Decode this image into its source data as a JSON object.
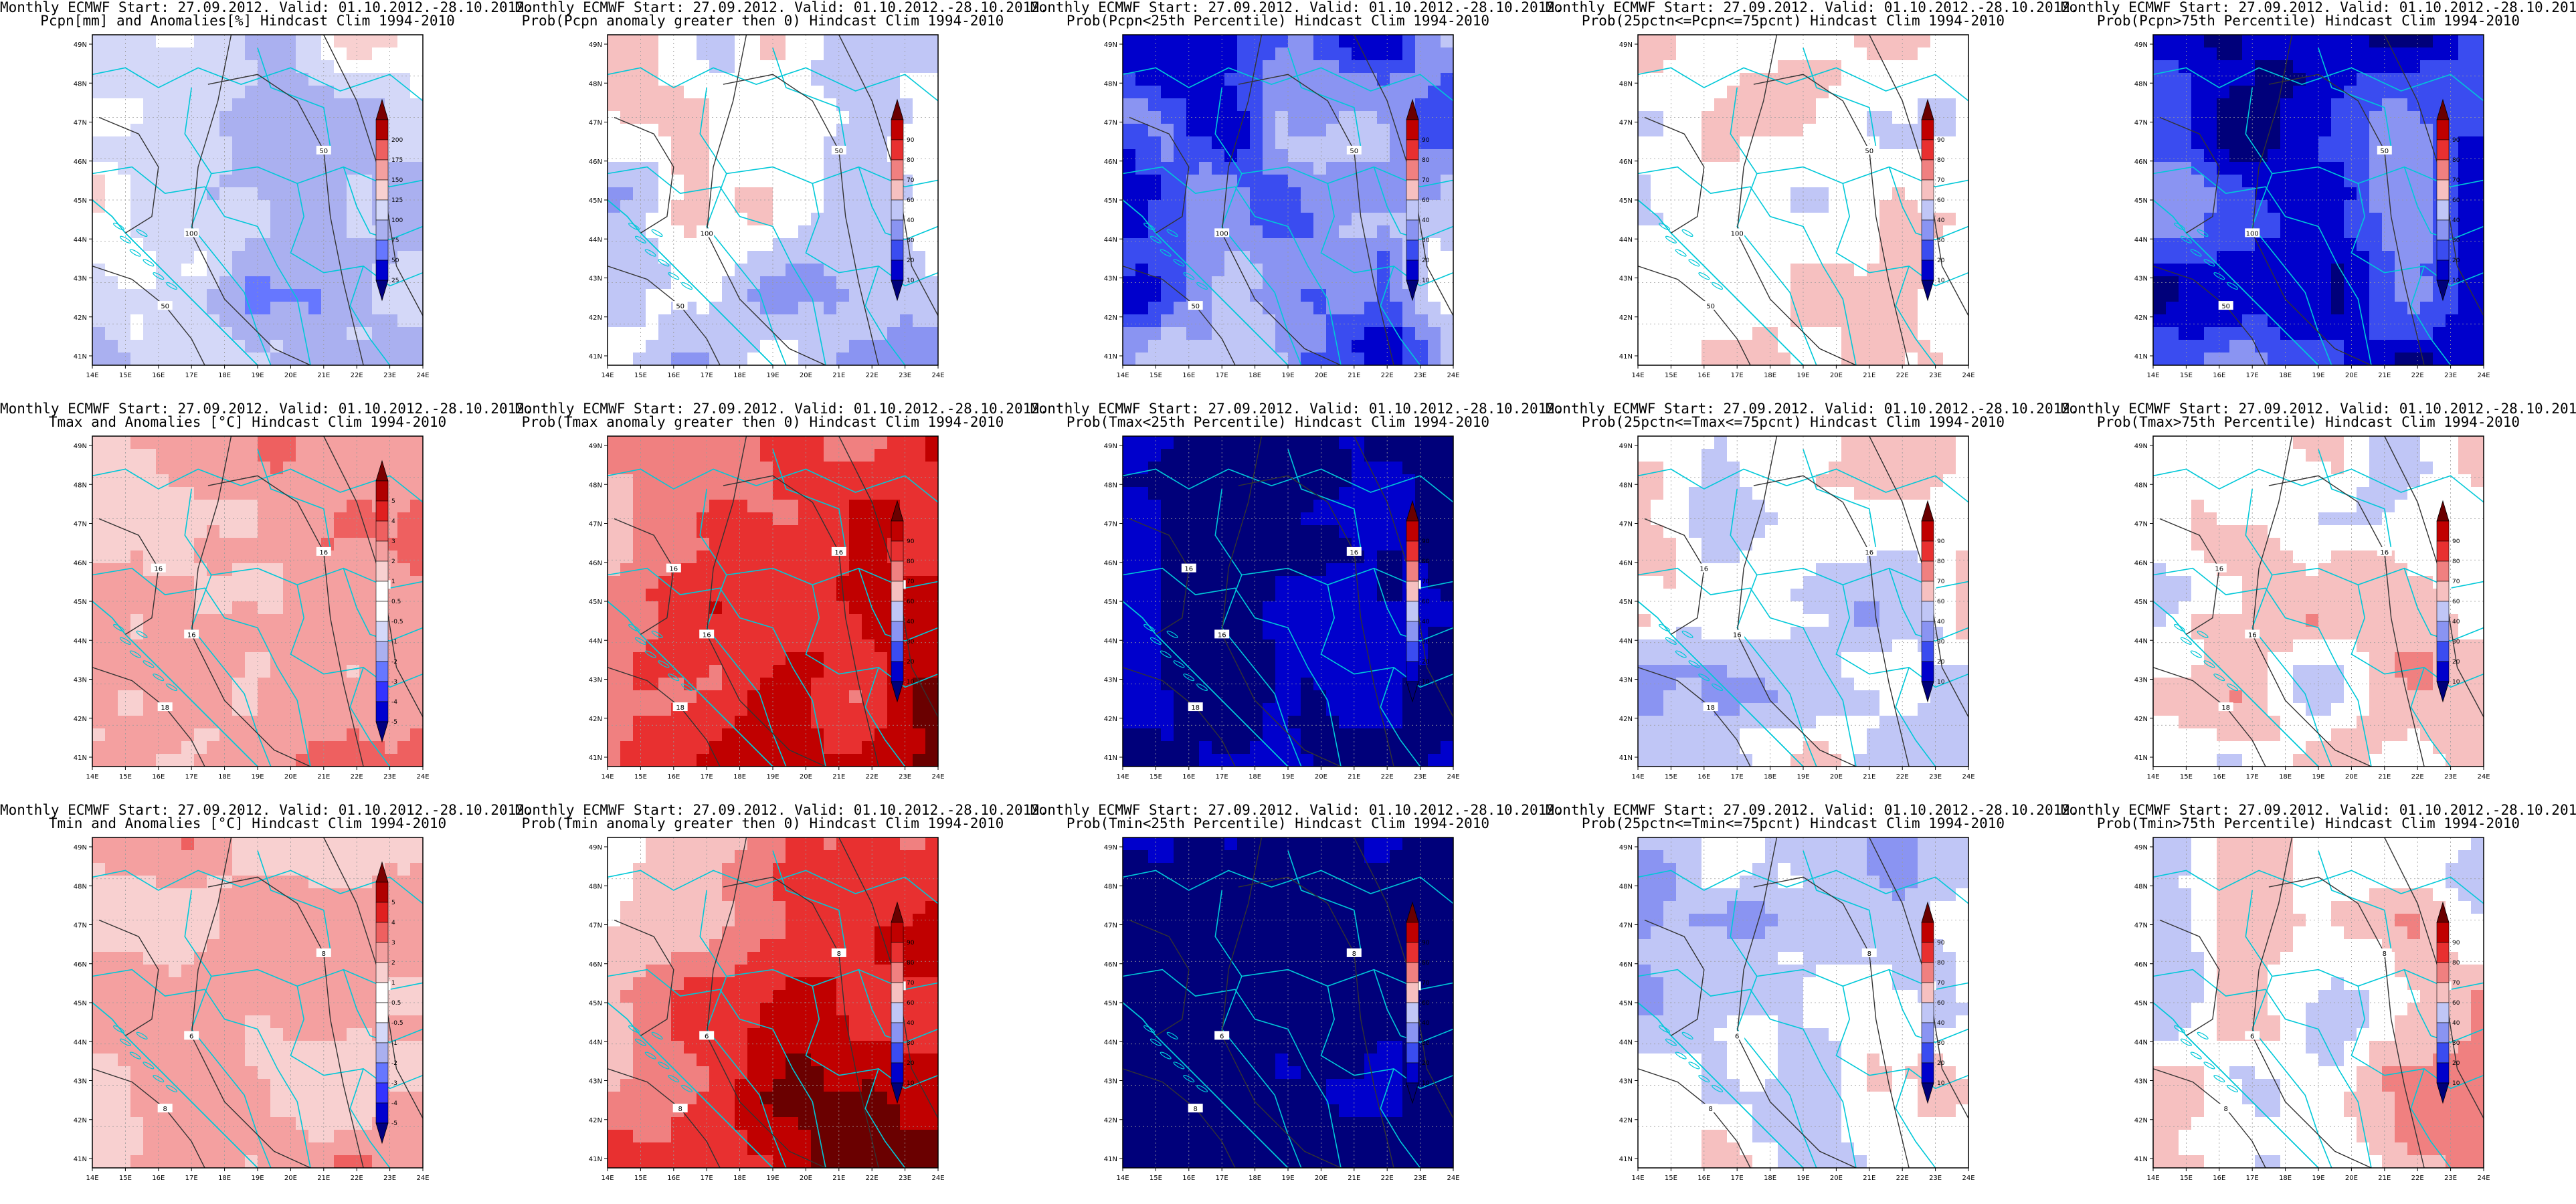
{
  "header": "Monthly ECMWF Start: 27.09.2012. Valid: 01.10.2012.-28.10.2012.",
  "lon_labels": [
    "14E",
    "15E",
    "16E",
    "17E",
    "18E",
    "19E",
    "20E",
    "21E",
    "22E",
    "23E",
    "24E"
  ],
  "lat_labels": [
    "41N",
    "42N",
    "43N",
    "44N",
    "45N",
    "46N",
    "47N",
    "48N",
    "49N"
  ],
  "colorbars": {
    "anom_pcpn": [
      "25",
      "50",
      "75",
      "100",
      "125",
      "150",
      "175",
      "200"
    ],
    "anom_temp": [
      "-5",
      "-4",
      "-3",
      "-2",
      "-1",
      "-0.5",
      "0.5",
      "1",
      "2",
      "3",
      "4",
      "5"
    ],
    "prob": [
      "10",
      "20",
      "30",
      "40",
      "60",
      "70",
      "80",
      "90"
    ]
  },
  "panels": [
    {
      "subtitle": "Pcpn[mm] and Anomalies[%] Hindcast Clim 1994-2010",
      "scale": "anom_pcpn",
      "field": "pcpn_anom",
      "contours": [
        "50",
        "50",
        "100"
      ]
    },
    {
      "subtitle": "Prob(Pcpn anomaly greater then 0) Hindcast Clim 1994-2010",
      "scale": "prob",
      "field": "p_gt0_pcpn",
      "contours": [
        "50",
        "50",
        "100"
      ]
    },
    {
      "subtitle": "Prob(Pcpn<25th Percentile) Hindcast Clim 1994-2010",
      "scale": "prob",
      "field": "p_lo_pcpn",
      "contours": [
        "50",
        "50",
        "100"
      ]
    },
    {
      "subtitle": "Prob(25pctn<=Pcpn<=75pcnt) Hindcast Clim 1994-2010",
      "scale": "prob",
      "field": "p_mid_pcpn",
      "contours": [
        "50",
        "50",
        "100"
      ]
    },
    {
      "subtitle": "Prob(Pcpn>75th Percentile) Hindcast Clim 1994-2010",
      "scale": "prob",
      "field": "p_hi_pcpn",
      "contours": [
        "50",
        "50",
        "100"
      ]
    },
    {
      "subtitle": "Tmax and Anomalies [°C] Hindcast Clim 1994-2010",
      "scale": "anom_temp",
      "field": "tmax_anom",
      "contours": [
        "16",
        "18",
        "16",
        "14",
        "16"
      ]
    },
    {
      "subtitle": "Prob(Tmax anomaly greater then 0) Hindcast Clim 1994-2010",
      "scale": "prob",
      "field": "p_gt0_tmax",
      "contours": [
        "16",
        "18",
        "16",
        "14",
        "16"
      ]
    },
    {
      "subtitle": "Prob(Tmax<25th Percentile) Hindcast Clim 1994-2010",
      "scale": "prob",
      "field": "p_lo_tmax",
      "contours": [
        "16",
        "18",
        "16",
        "14",
        "16"
      ]
    },
    {
      "subtitle": "Prob(25pctn<=Tmax<=75pcnt) Hindcast Clim 1994-2010",
      "scale": "prob",
      "field": "p_mid_tmax",
      "contours": [
        "16",
        "18",
        "16",
        "14",
        "16"
      ]
    },
    {
      "subtitle": "Prob(Tmax>75th Percentile) Hindcast Clim 1994-2010",
      "scale": "prob",
      "field": "p_hi_tmax",
      "contours": [
        "16",
        "18",
        "16",
        "14",
        "16"
      ]
    },
    {
      "subtitle": "Tmin and Anomalies [°C] Hindcast Clim 1994-2010",
      "scale": "anom_temp",
      "field": "tmin_anom",
      "contours": [
        "8",
        "8",
        "6",
        "8"
      ]
    },
    {
      "subtitle": "Prob(Tmin anomaly greater then 0) Hindcast Clim 1994-2010",
      "scale": "prob",
      "field": "p_gt0_tmin",
      "contours": [
        "8",
        "8",
        "6",
        "8"
      ]
    },
    {
      "subtitle": "Prob(Tmin<25th Percentile) Hindcast Clim 1994-2010",
      "scale": "prob",
      "field": "p_lo_tmin",
      "contours": [
        "8",
        "8",
        "6",
        "8"
      ]
    },
    {
      "subtitle": "Prob(25pctn<=Tmin<=75pcnt) Hindcast Clim 1994-2010",
      "scale": "prob",
      "field": "p_mid_tmin",
      "contours": [
        "8",
        "8",
        "6",
        "8"
      ]
    },
    {
      "subtitle": "Prob(Tmin>75th Percentile) Hindcast Clim 1994-2010",
      "scale": "prob",
      "field": "p_hi_tmin",
      "contours": [
        "8",
        "8",
        "6",
        "8"
      ]
    }
  ],
  "colors": {
    "coast_line": "#00c8d8",
    "contour_line": "#333333",
    "anom_ramp": [
      "#000080",
      "#0000d0",
      "#3333ff",
      "#6677ff",
      "#aab0f0",
      "#d4d8f8",
      "#ffffff",
      "#f8d0d0",
      "#f4a0a0",
      "#ee6060",
      "#e02020",
      "#b00000",
      "#7a0000"
    ],
    "prob_ramp": [
      "#00007a",
      "#0000cc",
      "#3a4cf0",
      "#8a94f2",
      "#c0c6f6",
      "#ffffff",
      "#f6c0c0",
      "#f08080",
      "#e83030",
      "#c00000",
      "#6a0000"
    ]
  }
}
